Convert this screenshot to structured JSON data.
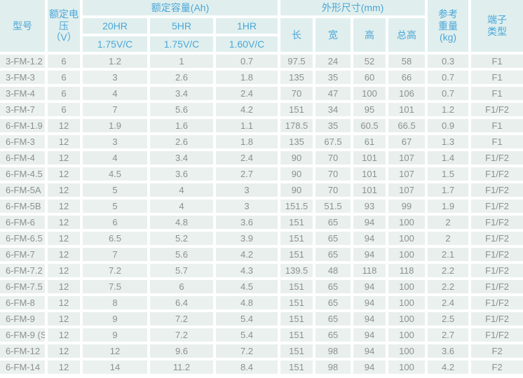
{
  "colors": {
    "header_bg": "#e0efed",
    "header_text": "#4ba6d9",
    "row_bg": "#e9efec",
    "row_alt_bg": "#ebf1ee",
    "cell_text": "#8c918f",
    "gap": "#ffffff"
  },
  "table": {
    "headers": {
      "model": "型号",
      "voltage": "额定电压\n（V）",
      "capacity_group": "额定容量(Ah)",
      "dimensions_group": "外形尺寸(mm)",
      "hr": [
        "20HR",
        "5HR",
        "1HR"
      ],
      "vc": [
        "1.75V/C",
        "1.75V/C",
        "1.60V/C"
      ],
      "dims": [
        "长",
        "宽",
        "高",
        "总高"
      ],
      "weight": "参考\n重量\n(kg)",
      "terminal": "端子\n类型"
    },
    "rows": [
      [
        "3-FM-1.2",
        "6",
        "1.2",
        "1",
        "0.7",
        "97.5",
        "24",
        "52",
        "58",
        "0.3",
        "F1"
      ],
      [
        "3-FM-3",
        "6",
        "3",
        "2.6",
        "1.8",
        "135",
        "35",
        "60",
        "66",
        "0.7",
        "F1"
      ],
      [
        "3-FM-4",
        "6",
        "4",
        "3.4",
        "2.4",
        "70",
        "47",
        "100",
        "106",
        "0.7",
        "F1"
      ],
      [
        "3-FM-7",
        "6",
        "7",
        "5.6",
        "4.2",
        "151",
        "34",
        "95",
        "101",
        "1.2",
        "F1/F2"
      ],
      [
        "6-FM-1.9",
        "12",
        "1.9",
        "1.6",
        "1.1",
        "178.5",
        "35",
        "60.5",
        "66.5",
        "0.9",
        "F1"
      ],
      [
        "6-FM-3",
        "12",
        "3",
        "2.6",
        "1.8",
        "135",
        "67.5",
        "61",
        "67",
        "1.3",
        "F1"
      ],
      [
        "6-FM-4",
        "12",
        "4",
        "3.4",
        "2.4",
        "90",
        "70",
        "101",
        "107",
        "1.4",
        "F1/F2"
      ],
      [
        "6-FM-4.5",
        "12",
        "4.5",
        "3.6",
        "2.7",
        "90",
        "70",
        "101",
        "107",
        "1.5",
        "F1/F2"
      ],
      [
        "6-FM-5A",
        "12",
        "5",
        "4",
        "3",
        "90",
        "70",
        "101",
        "107",
        "1.7",
        "F1/F2"
      ],
      [
        "6-FM-5B",
        "12",
        "5",
        "4",
        "3",
        "151.5",
        "51.5",
        "93",
        "99",
        "1.9",
        "F1/F2"
      ],
      [
        "6-FM-6",
        "12",
        "6",
        "4.8",
        "3.6",
        "151",
        "65",
        "94",
        "100",
        "2",
        "F1/F2"
      ],
      [
        "6-FM-6.5",
        "12",
        "6.5",
        "5.2",
        "3.9",
        "151",
        "65",
        "94",
        "100",
        "2",
        "F1/F2"
      ],
      [
        "6-FM-7",
        "12",
        "7",
        "5.6",
        "4.2",
        "151",
        "65",
        "94",
        "100",
        "2.1",
        "F1/F2"
      ],
      [
        "6-FM-7.2",
        "12",
        "7.2",
        "5.7",
        "4.3",
        "139.5",
        "48",
        "118",
        "118",
        "2.2",
        "F1/F2"
      ],
      [
        "6-FM-7.5",
        "12",
        "7.5",
        "6",
        "4.5",
        "151",
        "65",
        "94",
        "100",
        "2.2",
        "F1/F2"
      ],
      [
        "6-FM-8",
        "12",
        "8",
        "6.4",
        "4.8",
        "151",
        "65",
        "94",
        "100",
        "2.4",
        "F1/F2"
      ],
      [
        "6-FM-9",
        "12",
        "9",
        "7.2",
        "5.4",
        "151",
        "65",
        "94",
        "100",
        "2.5",
        "F1/F2"
      ],
      [
        "6-FM-9 (S)",
        "12",
        "9",
        "7.2",
        "5.4",
        "151",
        "65",
        "94",
        "100",
        "2.7",
        "F1/F2"
      ],
      [
        "6-FM-12",
        "12",
        "12",
        "9.6",
        "7.2",
        "151",
        "98",
        "94",
        "100",
        "3.6",
        "F2"
      ],
      [
        "6-FM-14",
        "12",
        "14",
        "11.2",
        "8.4",
        "151",
        "98",
        "94",
        "100",
        "4.2",
        "F2"
      ]
    ]
  }
}
